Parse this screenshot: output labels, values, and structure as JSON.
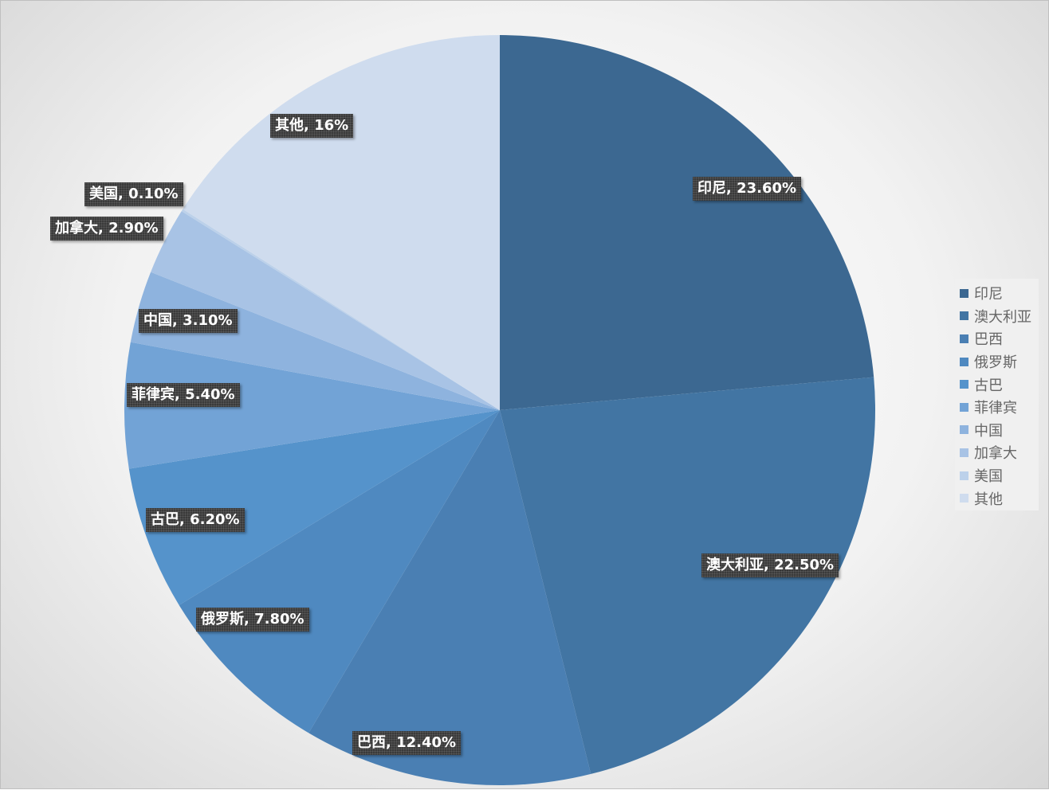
{
  "chart_data": {
    "type": "pie",
    "categories": [
      "印尼",
      "澳大利亚",
      "巴西",
      "俄罗斯",
      "古巴",
      "菲律宾",
      "中国",
      "加拿大",
      "美国",
      "其他"
    ],
    "values": [
      23.6,
      22.5,
      12.4,
      7.8,
      6.2,
      5.4,
      3.1,
      2.9,
      0.1,
      16
    ],
    "data_labels": [
      "印尼, 23.60%",
      "澳大利亚, 22.50%",
      "巴西, 12.40%",
      "俄罗斯, 7.80%",
      "古巴, 6.20%",
      "菲律宾, 5.40%",
      "中国, 3.10%",
      "加拿大, 2.90%",
      "美国, 0.10%",
      "其他, 16%"
    ],
    "colors": [
      "#3c6891",
      "#4275a3",
      "#4a7fb3",
      "#4f89c0",
      "#5593cb",
      "#72a3d6",
      "#8eb3de",
      "#a8c3e5",
      "#bcd1ea",
      "#cfdcee"
    ],
    "start_angle_deg": 0,
    "direction": "clockwise",
    "legend_position": "right"
  }
}
